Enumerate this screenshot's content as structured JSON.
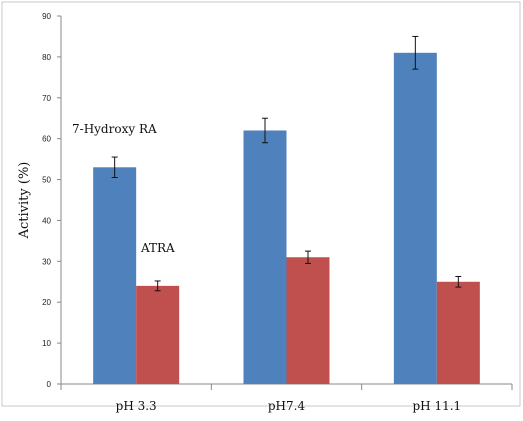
{
  "chart_data": {
    "type": "bar",
    "title": "",
    "xlabel": "",
    "ylabel": "Activity (%)",
    "ylim": [
      0,
      90
    ],
    "yticks": [
      0,
      10,
      20,
      30,
      40,
      50,
      60,
      70,
      80,
      90
    ],
    "categories": [
      "pH 3.3",
      "pH7.4",
      "pH 11.1"
    ],
    "series": [
      {
        "name": "7-Hydroxy RA",
        "color": "#4f81bd",
        "values": [
          53,
          62,
          81
        ],
        "errors": [
          2.5,
          3,
          4
        ]
      },
      {
        "name": "ATRA",
        "color": "#c0504d",
        "values": [
          24,
          31,
          25
        ],
        "errors": [
          1.2,
          1.5,
          1.3
        ]
      }
    ],
    "grid": false,
    "legend": "none"
  }
}
